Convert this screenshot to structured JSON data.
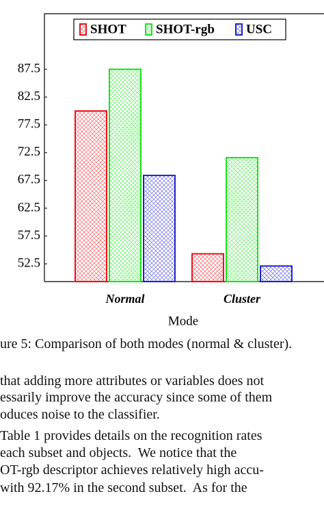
{
  "chart_data": {
    "type": "bar",
    "x_label": "Mode",
    "categories": [
      "Normal",
      "Cluster"
    ],
    "series": [
      {
        "name": "SHOT",
        "color": "#e8121b",
        "values": [
          80.0,
          54.3
        ]
      },
      {
        "name": "SHOT-rgb",
        "color": "#19e319",
        "values": [
          87.5,
          71.6
        ]
      },
      {
        "name": "USC",
        "color": "#2222cc",
        "values": [
          68.4,
          52.1
        ]
      }
    ],
    "ylim": [
      49.3,
      97.5
    ],
    "yticks": [
      52.5,
      57.5,
      62.5,
      67.5,
      72.5,
      77.5,
      82.5,
      87.5
    ],
    "legend": "top"
  },
  "caption": "ure 5: Comparison of both modes (normal & cluster).",
  "body": [
    "that adding more attributes or variables does not",
    "essarily improve the accuracy since some of them",
    "oduces noise to the classifier.",
    "Table 1 provides details on the recognition rates",
    "each subset and objects.  We notice that the",
    "OT-rgb descriptor achieves relatively high accu-",
    "with 92.17% in the second subset.  As for the"
  ]
}
